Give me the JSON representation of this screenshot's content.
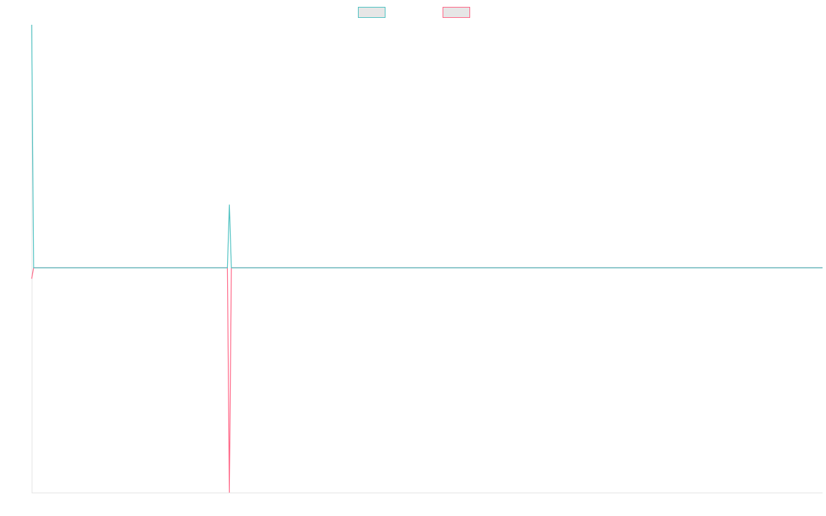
{
  "chart_data": {
    "type": "line",
    "x": [
      0,
      1,
      99,
      100,
      101,
      400
    ],
    "xlim": [
      0,
      400
    ],
    "ylim": [
      -37,
      40
    ],
    "legend": "top",
    "series": [
      {
        "color": "#4bc0c0",
        "values": [
          40,
          0,
          0,
          10.4,
          0,
          0
        ]
      },
      {
        "color": "#ff6384",
        "values": [
          -1.8,
          0,
          0,
          -37,
          0,
          0
        ]
      }
    ]
  }
}
